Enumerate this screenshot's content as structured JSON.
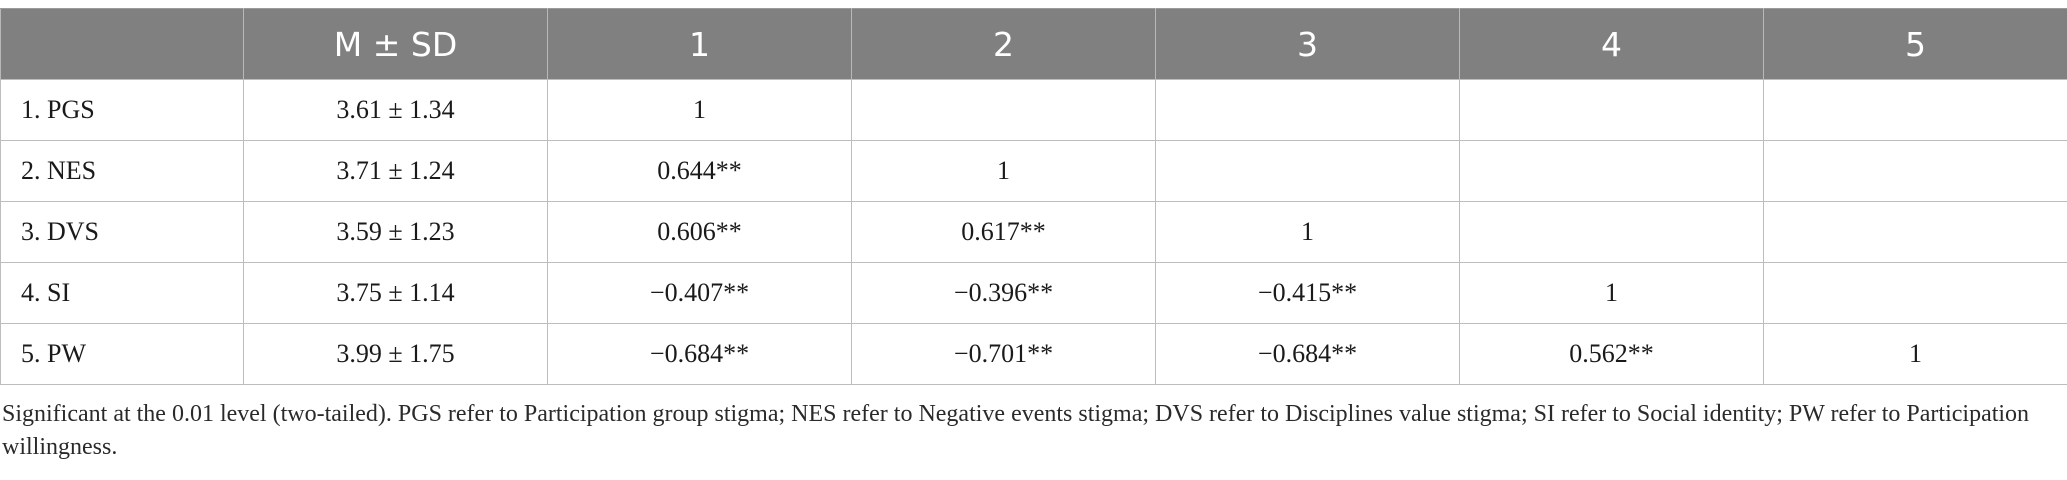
{
  "table": {
    "headers": [
      "",
      "M ± SD",
      "1",
      "2",
      "3",
      "4",
      "5"
    ],
    "rows": [
      {
        "label": "1. PGS",
        "mean_sd": "3.61 ± 1.34",
        "cells": [
          "1",
          "",
          "",
          "",
          ""
        ]
      },
      {
        "label": "2. NES",
        "mean_sd": "3.71 ± 1.24",
        "cells": [
          "0.644**",
          "1",
          "",
          "",
          ""
        ]
      },
      {
        "label": "3. DVS",
        "mean_sd": "3.59 ± 1.23",
        "cells": [
          "0.606**",
          "0.617**",
          "1",
          "",
          ""
        ]
      },
      {
        "label": "4. SI",
        "mean_sd": "3.75 ± 1.14",
        "cells": [
          "−0.407**",
          "−0.396**",
          "−0.415**",
          "1",
          ""
        ]
      },
      {
        "label": "5. PW",
        "mean_sd": "3.99 ± 1.75",
        "cells": [
          "−0.684**",
          "−0.701**",
          "−0.684**",
          "0.562**",
          "1"
        ]
      }
    ]
  },
  "footnote": "Significant at the 0.01 level (two-tailed). PGS refer to Participation group stigma; NES refer to Negative events stigma; DVS refer to Disciplines value stigma; SI refer to Social identity; PW refer to Participation willingness.",
  "colors": {
    "header_bg": "#808080",
    "header_text": "#ffffff",
    "grid": "#bdbdbd"
  }
}
